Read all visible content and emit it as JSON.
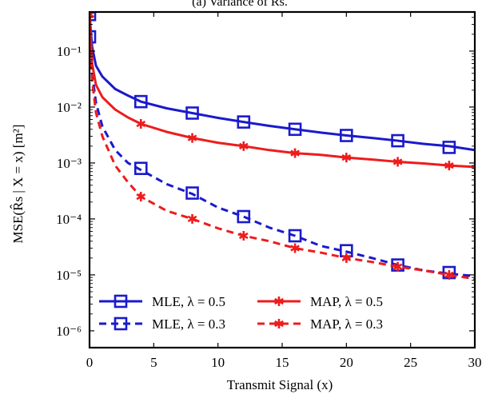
{
  "chart_data": {
    "type": "line",
    "title": "(a) Variance of R̂s.",
    "xlabel": "Transmit Signal (x)",
    "ylabel": "MSE(R̂s | X = x) [m²]",
    "xlim": [
      0,
      30
    ],
    "ylim": [
      5e-07,
      0.5
    ],
    "yscale": "log",
    "grid": false,
    "legend_position": "bottom-left",
    "x_ticks": [
      0,
      5,
      10,
      15,
      20,
      25,
      30
    ],
    "y_ticks": [
      1e-06,
      1e-05,
      0.0001,
      0.001,
      0.01,
      0.1
    ],
    "y_tick_labels": [
      "10⁻⁶",
      "10⁻⁵",
      "10⁻⁴",
      "10⁻³",
      "10⁻²",
      "10⁻¹"
    ],
    "series": [
      {
        "name": "MLE, λ = 0.5",
        "color": "#1a1acc",
        "dash": "solid",
        "marker": "square",
        "x": [
          0,
          0.2,
          0.5,
          1,
          2,
          3,
          4,
          6,
          8,
          10,
          12,
          14,
          16,
          18,
          20,
          22,
          24,
          26,
          28,
          30
        ],
        "y": [
          0.45,
          0.12,
          0.055,
          0.035,
          0.021,
          0.016,
          0.0125,
          0.0095,
          0.0078,
          0.0064,
          0.0054,
          0.0046,
          0.004,
          0.0035,
          0.0031,
          0.0028,
          0.0025,
          0.0022,
          0.002,
          0.0017
        ],
        "marker_x": [
          0,
          4,
          8,
          12,
          16,
          20,
          24,
          28
        ],
        "marker_y": [
          0.45,
          0.0125,
          0.0078,
          0.0054,
          0.004,
          0.0031,
          0.0025,
          0.0019
        ]
      },
      {
        "name": "MLE, λ = 0.3",
        "color": "#1a1acc",
        "dash": "dashed",
        "marker": "square",
        "x": [
          0,
          0.2,
          0.5,
          1,
          2,
          3,
          4,
          6,
          8,
          10,
          12,
          14,
          16,
          18,
          20,
          22,
          24,
          26,
          28,
          30
        ],
        "y": [
          0.18,
          0.04,
          0.012,
          0.0045,
          0.0017,
          0.001,
          0.00075,
          0.00042,
          0.00028,
          0.00016,
          0.00011,
          7e-05,
          5e-05,
          3.3e-05,
          2.6e-05,
          2e-05,
          1.5e-05,
          1.2e-05,
          1.05e-05,
          9.5e-06
        ],
        "marker_x": [
          0,
          4,
          8,
          12,
          16,
          20,
          24,
          28
        ],
        "marker_y": [
          0.18,
          0.0008,
          0.00029,
          0.00011,
          5e-05,
          2.7e-05,
          1.5e-05,
          1.1e-05
        ]
      },
      {
        "name": "MAP, λ = 0.5",
        "color": "#ee1c1c",
        "dash": "solid",
        "marker": "star",
        "x": [
          0,
          0.2,
          0.5,
          1,
          2,
          3,
          4,
          6,
          8,
          10,
          12,
          14,
          16,
          18,
          20,
          22,
          24,
          26,
          28,
          30
        ],
        "y": [
          0.45,
          0.06,
          0.025,
          0.015,
          0.009,
          0.0065,
          0.005,
          0.0036,
          0.0028,
          0.0023,
          0.002,
          0.0017,
          0.0015,
          0.0014,
          0.00125,
          0.00115,
          0.00105,
          0.00098,
          0.0009,
          0.00085
        ],
        "marker_x": [
          0,
          4,
          8,
          12,
          16,
          20,
          24,
          28
        ],
        "marker_y": [
          0.45,
          0.005,
          0.0028,
          0.002,
          0.0015,
          0.00125,
          0.00105,
          0.0009
        ]
      },
      {
        "name": "MAP, λ = 0.3",
        "color": "#ee1c1c",
        "dash": "dashed",
        "marker": "star",
        "x": [
          0,
          0.2,
          0.5,
          1,
          2,
          3,
          4,
          6,
          8,
          10,
          12,
          14,
          16,
          18,
          20,
          22,
          24,
          26,
          28,
          30
        ],
        "y": [
          0.45,
          0.03,
          0.008,
          0.003,
          0.0009,
          0.00045,
          0.00025,
          0.00014,
          0.0001,
          6.8e-05,
          5e-05,
          4e-05,
          3e-05,
          2.5e-05,
          2e-05,
          1.7e-05,
          1.4e-05,
          1.2e-05,
          1e-05,
          8.5e-06
        ],
        "marker_x": [
          0,
          4,
          8,
          12,
          16,
          20,
          24,
          28
        ],
        "marker_y": [
          0.45,
          0.00025,
          0.0001,
          5e-05,
          3e-05,
          2e-05,
          1.4e-05,
          1e-05
        ]
      }
    ]
  }
}
